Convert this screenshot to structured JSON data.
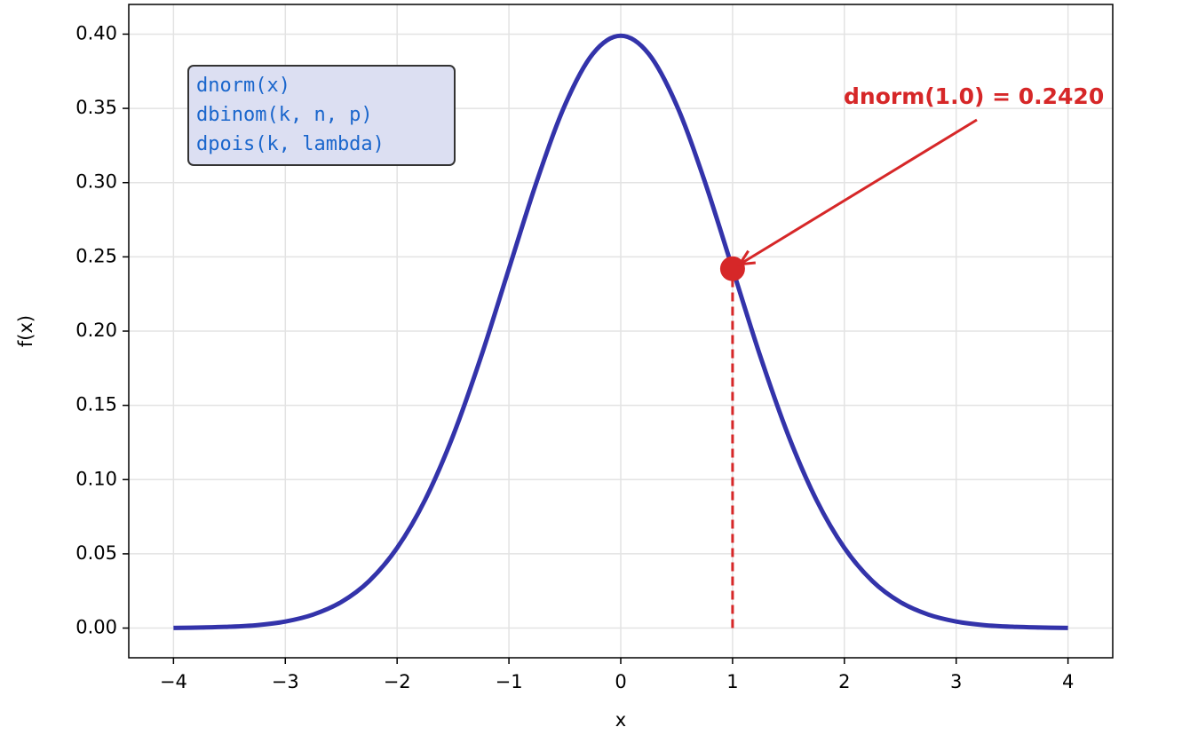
{
  "chart_data": {
    "type": "line",
    "xlabel": "x",
    "ylabel": "f(x)",
    "x": [
      -4,
      -3.75,
      -3.5,
      -3.25,
      -3,
      -2.75,
      -2.5,
      -2.25,
      -2,
      -1.75,
      -1.5,
      -1.25,
      -1,
      -0.75,
      -0.5,
      -0.25,
      0,
      0.25,
      0.5,
      0.75,
      1,
      1.25,
      1.5,
      1.75,
      2,
      2.25,
      2.5,
      2.75,
      3,
      3.25,
      3.5,
      3.75,
      4
    ],
    "values": [
      0.0001,
      0.0004,
      0.0009,
      0.002,
      0.0044,
      0.0091,
      0.0175,
      0.0317,
      0.054,
      0.0863,
      0.1295,
      0.1826,
      0.242,
      0.3011,
      0.3521,
      0.3867,
      0.3989,
      0.3867,
      0.3521,
      0.3011,
      0.242,
      0.1826,
      0.1295,
      0.0863,
      0.054,
      0.0317,
      0.0175,
      0.0091,
      0.0044,
      0.002,
      0.0009,
      0.0004,
      0.0001
    ],
    "color": "#3333aa",
    "highlight": {
      "x": 1,
      "y": 0.242,
      "color": "#d62728"
    },
    "annotation": "dnorm(1.0) = 0.2420",
    "text_box": [
      "dnorm(x)",
      "dbinom(k, n, p)",
      "dpois(k, lambda)"
    ],
    "xlim": [
      -4.4,
      4.4
    ],
    "xticks": [
      {
        "value": -4,
        "label": "−4"
      },
      {
        "value": -3,
        "label": "−3"
      },
      {
        "value": -2,
        "label": "−2"
      },
      {
        "value": -1,
        "label": "−1"
      },
      0,
      1,
      2,
      3,
      4
    ],
    "ylim": [
      -0.02,
      0.42
    ],
    "yticks": [
      {
        "value": 0,
        "label": "0.00"
      },
      {
        "value": 0.05,
        "label": "0.05"
      },
      {
        "value": 0.1,
        "label": "0.10"
      },
      {
        "value": 0.15,
        "label": "0.15"
      },
      {
        "value": 0.2,
        "label": "0.20"
      },
      {
        "value": 0.25,
        "label": "0.25"
      },
      {
        "value": 0.3,
        "label": "0.30"
      },
      {
        "value": 0.35,
        "label": "0.35"
      },
      {
        "value": 0.4,
        "label": "0.40"
      }
    ],
    "grid": true
  }
}
